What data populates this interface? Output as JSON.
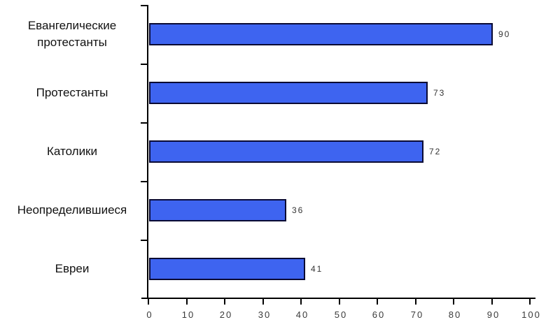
{
  "chart_data": {
    "type": "bar",
    "orientation": "horizontal",
    "title": "",
    "xlabel": "",
    "ylabel": "",
    "categories": [
      "Евангелические протестанты",
      "Протестанты",
      "Католики",
      "Неопределившиеся",
      "Евреи"
    ],
    "values": [
      90,
      73,
      72,
      36,
      41
    ],
    "value_labels": [
      "90",
      "73",
      "72",
      "36",
      "41"
    ],
    "xlim": [
      0,
      100
    ],
    "x_ticks": [
      0,
      10,
      20,
      30,
      40,
      50,
      60,
      70,
      80,
      90,
      100
    ],
    "grid": false,
    "legend": false,
    "colors": {
      "bar_fill": "#3E64F0",
      "bar_border": "#0A0A33",
      "axis": "#000000",
      "category_text": "#111111",
      "value_text": "#333333",
      "tick_text": "#3A3A3A",
      "background": "#FFFFFF"
    }
  }
}
